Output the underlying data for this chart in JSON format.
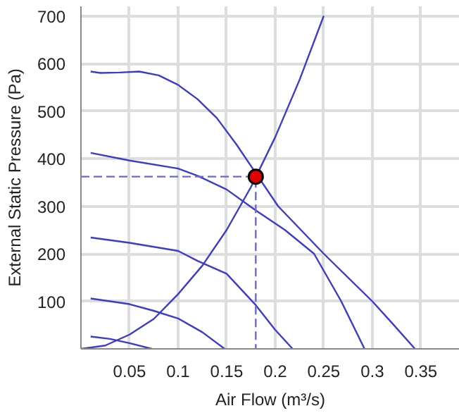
{
  "chart_data": {
    "type": "line",
    "xlabel": "Air Flow (m³/s)",
    "ylabel": "External Static Pressure (Pa)",
    "xlim": [
      0,
      0.39
    ],
    "ylim": [
      0,
      720
    ],
    "xticks": [
      0.05,
      0.1,
      0.15,
      0.2,
      0.25,
      0.3,
      0.35
    ],
    "yticks": [
      100,
      200,
      300,
      400,
      500,
      600,
      700
    ],
    "grid": true,
    "series": [
      {
        "color": "#3b3bcc",
        "x": [
          0.01,
          0.02,
          0.04,
          0.06,
          0.08,
          0.1,
          0.12,
          0.14,
          0.16,
          0.203,
          0.25,
          0.3,
          0.32,
          0.344
        ],
        "values": [
          583,
          580,
          581,
          583,
          575,
          555,
          525,
          485,
          430,
          300,
          200,
          100,
          55,
          0
        ]
      },
      {
        "color": "#3b3bcc",
        "x": [
          0.01,
          0.05,
          0.1,
          0.12,
          0.15,
          0.18,
          0.21,
          0.24,
          0.268,
          0.292
        ],
        "values": [
          412,
          396,
          379,
          364,
          335,
          291,
          250,
          200,
          100,
          0
        ]
      },
      {
        "color": "#3b3bcc",
        "x": [
          0.01,
          0.05,
          0.1,
          0.12,
          0.15,
          0.18,
          0.2,
          0.218
        ],
        "values": [
          234,
          223,
          206,
          185,
          158,
          92,
          40,
          0
        ]
      },
      {
        "color": "#3b3bcc",
        "x": [
          0.01,
          0.05,
          0.075,
          0.1,
          0.125,
          0.148
        ],
        "values": [
          106,
          94,
          80,
          64,
          35,
          0
        ]
      },
      {
        "color": "#3b3bcc",
        "x": [
          0.01,
          0.03,
          0.05,
          0.073
        ],
        "values": [
          26,
          21,
          12,
          0
        ]
      },
      {
        "color": "#3b3bcc",
        "x": [
          0,
          0.025,
          0.05,
          0.075,
          0.1,
          0.125,
          0.15,
          0.175,
          0.2,
          0.225,
          0.25
        ],
        "values": [
          0,
          7,
          30,
          63,
          115,
          175,
          250,
          340,
          445,
          565,
          700
        ]
      },
      {
        "color": "#6a6ad6",
        "line_style": "dashed",
        "x": [
          0,
          0.18,
          0.18
        ],
        "values": [
          362,
          362,
          0
        ]
      },
      {
        "type": "scatter",
        "marker": "circle",
        "color": "#e00000",
        "x": [
          0.18
        ],
        "values": [
          362
        ]
      }
    ]
  }
}
